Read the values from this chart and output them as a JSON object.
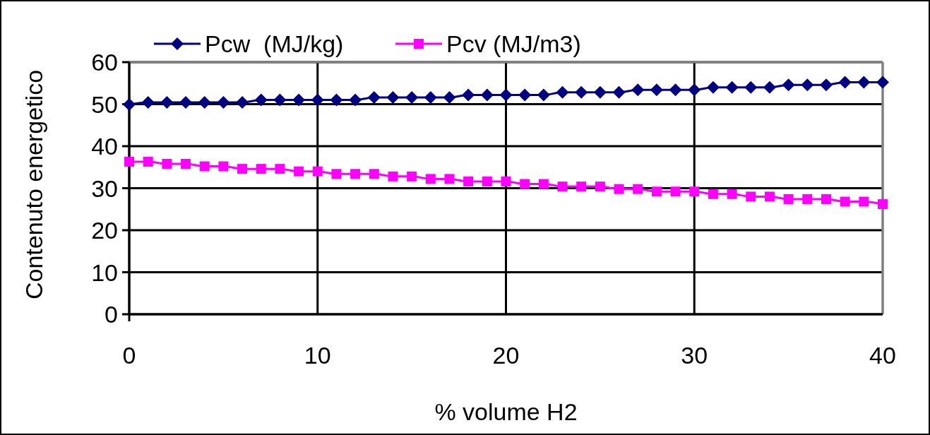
{
  "chart_data": {
    "type": "line",
    "xlabel": "% volume H2",
    "ylabel": "Contenuto energetico",
    "x": [
      0,
      1,
      2,
      3,
      4,
      5,
      6,
      7,
      8,
      9,
      10,
      11,
      12,
      13,
      14,
      15,
      16,
      17,
      18,
      19,
      20,
      21,
      22,
      23,
      24,
      25,
      26,
      27,
      28,
      29,
      30,
      31,
      32,
      33,
      34,
      35,
      36,
      37,
      38,
      39,
      40
    ],
    "series": [
      {
        "name": "Pcw  (MJ/kg)",
        "color": "#000080",
        "marker": "diamond",
        "values": [
          49.9,
          50.4,
          50.4,
          50.4,
          50.4,
          50.4,
          50.4,
          51.0,
          51.0,
          51.0,
          51.0,
          51.0,
          51.0,
          51.6,
          51.6,
          51.6,
          51.6,
          51.6,
          52.2,
          52.2,
          52.2,
          52.2,
          52.2,
          52.8,
          52.8,
          52.8,
          52.8,
          53.4,
          53.4,
          53.4,
          53.4,
          54.0,
          54.0,
          54.0,
          54.0,
          54.6,
          54.6,
          54.6,
          55.2,
          55.2,
          55.2
        ]
      },
      {
        "name": "Pcv (MJ/m3)",
        "color": "#ff00ff",
        "marker": "square",
        "values": [
          36.3,
          36.3,
          35.8,
          35.8,
          35.2,
          35.2,
          34.6,
          34.6,
          34.6,
          34.0,
          34.0,
          33.4,
          33.4,
          33.4,
          32.8,
          32.8,
          32.2,
          32.2,
          31.6,
          31.6,
          31.6,
          31.0,
          31.0,
          30.4,
          30.4,
          30.4,
          29.8,
          29.8,
          29.2,
          29.2,
          29.2,
          28.6,
          28.6,
          28.0,
          28.0,
          27.4,
          27.4,
          27.4,
          26.8,
          26.8,
          26.2
        ]
      }
    ],
    "xlim": [
      0,
      40
    ],
    "xticks": [
      0,
      10,
      20,
      30,
      40
    ],
    "ylim": [
      0,
      60
    ],
    "yticks": [
      0,
      10,
      20,
      30,
      40,
      50,
      60
    ],
    "grid": true,
    "legend": "top"
  }
}
